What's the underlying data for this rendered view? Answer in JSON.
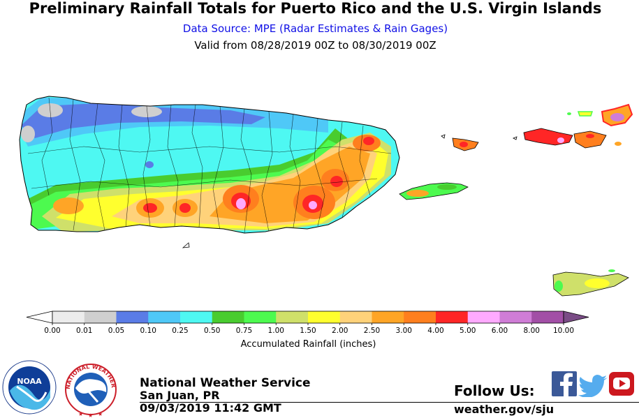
{
  "header": {
    "title": "Preliminary Rainfall Totals for Puerto Rico and the U.S. Virgin Islands",
    "source": "Data Source: MPE (Radar Estimates & Rain Gages)",
    "valid": "Valid from 08/28/2019 00Z to 08/30/2019 00Z"
  },
  "legend": {
    "title": "Accumulated Rainfall (inches)",
    "ticks": [
      "0.00",
      "0.01",
      "0.05",
      "0.10",
      "0.25",
      "0.50",
      "0.75",
      "1.00",
      "1.50",
      "2.00",
      "2.50",
      "3.00",
      "4.00",
      "5.00",
      "6.00",
      "8.00",
      "10.00"
    ],
    "colors": [
      "#ececec",
      "#cfcfcf",
      "#5a7ce6",
      "#4fc8f7",
      "#4ef8f2",
      "#49cc2f",
      "#4dfa4f",
      "#cfe06a",
      "#ffff2e",
      "#ffd27a",
      "#ffa526",
      "#ff7f1e",
      "#ff2626",
      "#ffaaff",
      "#cf7dd6",
      "#a24fa6"
    ],
    "under_color": "#ffffff",
    "over_color": "#7a4c86"
  },
  "footer": {
    "office": "National Weather Service",
    "city": "San Juan, PR",
    "issued": "09/03/2019 11:42 GMT",
    "follow": "Follow Us:",
    "website": "weather.gov/sju"
  },
  "logos": {
    "noaa_text": "NOAA",
    "nws_ring": "NATIONAL WEATHER SERVICE"
  },
  "icons": [
    "facebook-icon",
    "twitter-icon",
    "youtube-icon"
  ]
}
